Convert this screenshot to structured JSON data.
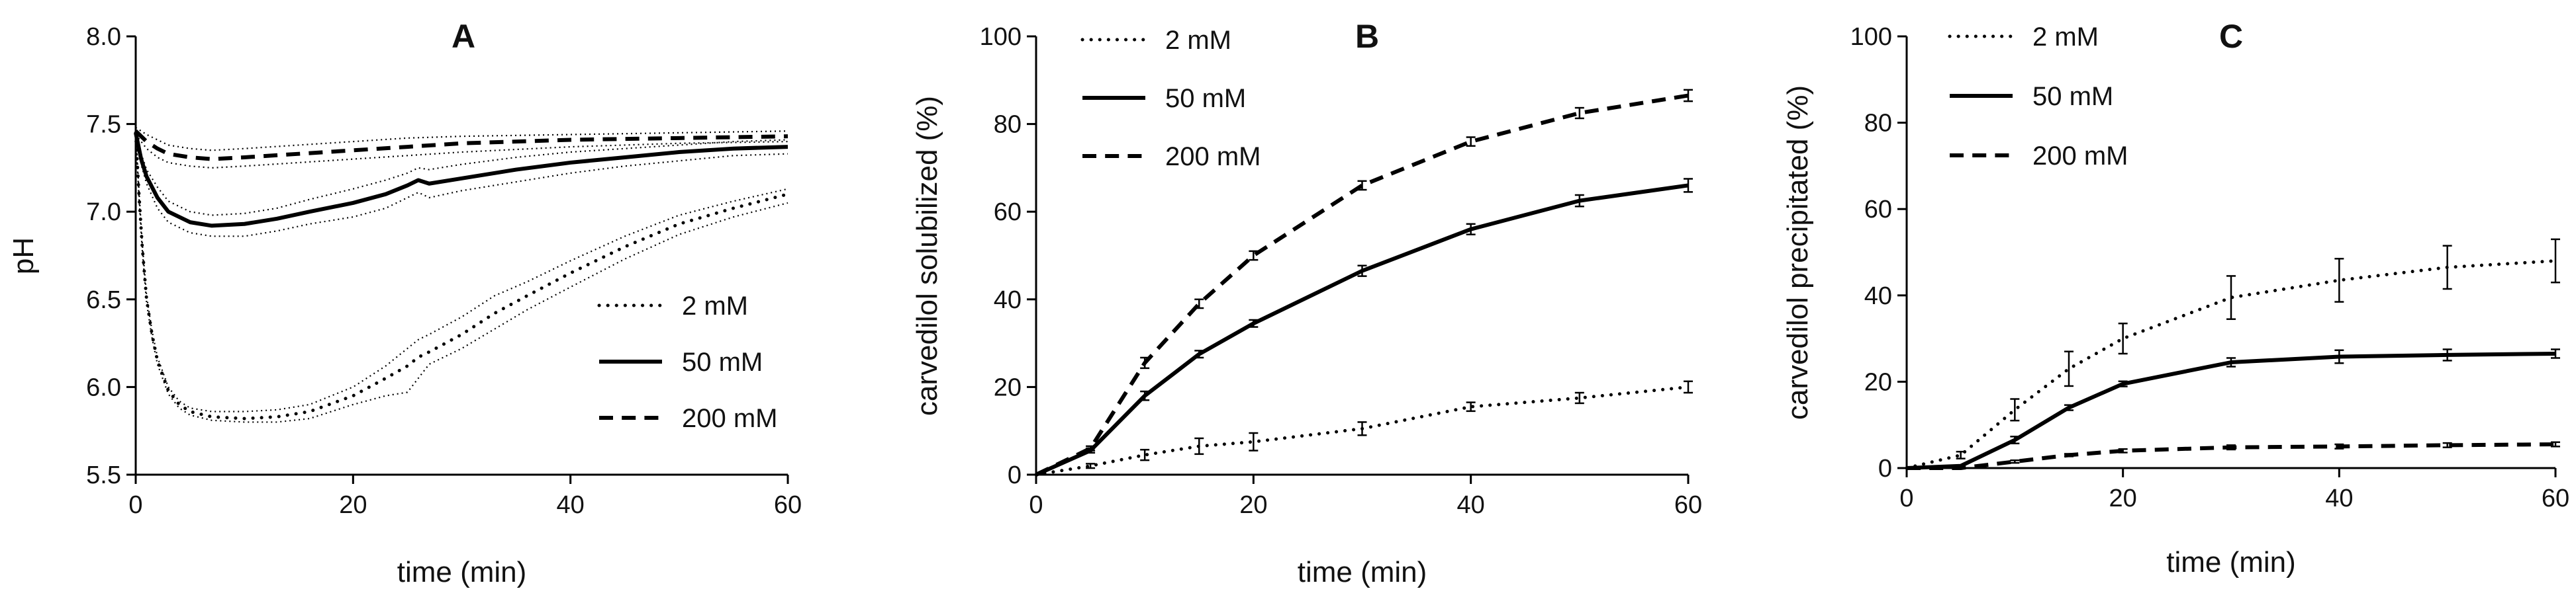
{
  "figure_title": "",
  "chart_data": [
    {
      "panel": "A",
      "type": "line",
      "title": "A",
      "xlabel": "time (min)",
      "ylabel": "pH",
      "xlim": [
        0,
        60
      ],
      "ylim": [
        5.5,
        8.0
      ],
      "xticks": [
        0,
        20,
        40,
        60
      ],
      "xtick_labels": [
        "0",
        "20",
        "40",
        "60"
      ],
      "yticks": [
        5.5,
        6.0,
        6.5,
        7.0,
        7.5,
        8.0
      ],
      "ytick_labels": [
        "5.5",
        "6.0",
        "6.5",
        "7.0",
        "7.5",
        "8.0"
      ],
      "legend_position": "bottom-right",
      "band_style": "dotted",
      "series": [
        {
          "name": "2 mM",
          "style": "dotted",
          "width": 5,
          "x": [
            0,
            0.3,
            0.6,
            1,
            1.5,
            2,
            3,
            4,
            5,
            7,
            10,
            13,
            16,
            20,
            23,
            25,
            26,
            27,
            30,
            33,
            36,
            40,
            45,
            50,
            55,
            60
          ],
          "y": [
            7.45,
            7.1,
            6.8,
            6.5,
            6.3,
            6.15,
            5.98,
            5.9,
            5.86,
            5.83,
            5.82,
            5.83,
            5.86,
            5.95,
            6.05,
            6.12,
            6.17,
            6.2,
            6.3,
            6.42,
            6.52,
            6.65,
            6.8,
            6.93,
            7.02,
            7.1
          ],
          "upper": [
            7.46,
            7.12,
            6.82,
            6.52,
            6.32,
            6.17,
            6.0,
            5.92,
            5.88,
            5.86,
            5.86,
            5.87,
            5.9,
            6.0,
            6.12,
            6.22,
            6.27,
            6.3,
            6.4,
            6.52,
            6.6,
            6.72,
            6.86,
            6.98,
            7.06,
            7.13
          ],
          "lower": [
            7.44,
            7.08,
            6.78,
            6.48,
            6.28,
            6.13,
            5.96,
            5.88,
            5.84,
            5.81,
            5.8,
            5.8,
            5.82,
            5.9,
            5.95,
            5.97,
            6.05,
            6.13,
            6.22,
            6.33,
            6.44,
            6.57,
            6.73,
            6.87,
            6.97,
            7.05
          ]
        },
        {
          "name": "50 mM",
          "style": "solid",
          "width": 6,
          "x": [
            0,
            0.5,
            1,
            2,
            3,
            5,
            7,
            10,
            13,
            16,
            20,
            23,
            25,
            26,
            27,
            30,
            35,
            40,
            45,
            50,
            55,
            60
          ],
          "y": [
            7.45,
            7.3,
            7.2,
            7.08,
            7.0,
            6.94,
            6.92,
            6.93,
            6.96,
            7.0,
            7.05,
            7.1,
            7.15,
            7.18,
            7.16,
            7.19,
            7.24,
            7.28,
            7.31,
            7.34,
            7.36,
            7.37
          ],
          "upper": [
            7.46,
            7.33,
            7.24,
            7.14,
            7.06,
            7.0,
            6.98,
            6.99,
            7.02,
            7.07,
            7.13,
            7.18,
            7.22,
            7.25,
            7.24,
            7.27,
            7.31,
            7.34,
            7.36,
            7.38,
            7.4,
            7.41
          ],
          "lower": [
            7.44,
            7.27,
            7.16,
            7.02,
            6.94,
            6.88,
            6.86,
            6.86,
            6.89,
            6.93,
            6.97,
            7.02,
            7.08,
            7.11,
            7.08,
            7.12,
            7.17,
            7.22,
            7.26,
            7.29,
            7.32,
            7.33
          ]
        },
        {
          "name": "200 mM",
          "style": "dashed",
          "width": 6,
          "x": [
            0,
            0.5,
            1,
            2,
            3,
            5,
            7,
            10,
            15,
            20,
            25,
            30,
            40,
            50,
            60
          ],
          "y": [
            7.46,
            7.43,
            7.4,
            7.36,
            7.33,
            7.31,
            7.3,
            7.31,
            7.33,
            7.35,
            7.37,
            7.39,
            7.41,
            7.42,
            7.43
          ],
          "upper": [
            7.48,
            7.46,
            7.44,
            7.41,
            7.38,
            7.36,
            7.35,
            7.36,
            7.38,
            7.4,
            7.42,
            7.43,
            7.44,
            7.45,
            7.46
          ],
          "lower": [
            7.44,
            7.4,
            7.36,
            7.31,
            7.28,
            7.26,
            7.25,
            7.26,
            7.28,
            7.3,
            7.32,
            7.34,
            7.37,
            7.39,
            7.4
          ]
        }
      ]
    },
    {
      "panel": "B",
      "type": "line",
      "title": "B",
      "xlabel": "time (min)",
      "ylabel": "carvedilol solubilized (%)",
      "xlim": [
        0,
        60
      ],
      "ylim": [
        0,
        100
      ],
      "xticks": [
        0,
        20,
        40,
        60
      ],
      "xtick_labels": [
        "0",
        "20",
        "40",
        "60"
      ],
      "yticks": [
        0,
        20,
        40,
        60,
        80,
        100
      ],
      "ytick_labels": [
        "0",
        "20",
        "40",
        "60",
        "80",
        "100"
      ],
      "legend_position": "top-left",
      "series": [
        {
          "name": "2 mM",
          "style": "dotted",
          "width": 5,
          "x": [
            0,
            5,
            10,
            15,
            20,
            30,
            40,
            50,
            60
          ],
          "y": [
            0,
            2,
            4.5,
            6.5,
            7.5,
            10.5,
            15.5,
            17.5,
            20
          ],
          "err": [
            0,
            0.5,
            1.2,
            1.8,
            2,
            1.5,
            1,
            1.2,
            1.3
          ]
        },
        {
          "name": "50 mM",
          "style": "solid",
          "width": 6,
          "x": [
            0,
            5,
            10,
            15,
            20,
            30,
            40,
            50,
            60
          ],
          "y": [
            0,
            5.5,
            18,
            27.5,
            34.5,
            46.5,
            56,
            62.5,
            66
          ],
          "err": [
            0,
            0.5,
            1,
            0.8,
            0.8,
            1.2,
            1.2,
            1.3,
            1.5
          ]
        },
        {
          "name": "200 mM",
          "style": "dashed",
          "width": 6,
          "x": [
            0,
            5,
            10,
            15,
            20,
            30,
            40,
            50,
            60
          ],
          "y": [
            0,
            6,
            25.5,
            39,
            50,
            66,
            76,
            82.5,
            86.5
          ],
          "err": [
            0,
            0.5,
            1.2,
            1,
            1,
            1,
            1,
            1.2,
            1.3
          ]
        }
      ]
    },
    {
      "panel": "C",
      "type": "line",
      "title": "C",
      "xlabel": "time (min)",
      "ylabel": "carvedilol precipitated (%)",
      "xlim": [
        0,
        60
      ],
      "ylim": [
        0,
        100
      ],
      "xticks": [
        0,
        20,
        40,
        60
      ],
      "xtick_labels": [
        "0",
        "20",
        "40",
        "60"
      ],
      "yticks": [
        0,
        20,
        40,
        60,
        80,
        100
      ],
      "ytick_labels": [
        "0",
        "20",
        "40",
        "60",
        "80",
        "100"
      ],
      "legend_position": "top-left",
      "series": [
        {
          "name": "2 mM",
          "style": "dotted",
          "width": 5,
          "x": [
            0,
            5,
            10,
            15,
            20,
            30,
            40,
            50,
            60
          ],
          "y": [
            0,
            3,
            13.5,
            23,
            30,
            39.5,
            43.5,
            46.5,
            48
          ],
          "err": [
            0,
            0.8,
            2.5,
            4,
            3.5,
            5,
            5,
            5,
            5
          ]
        },
        {
          "name": "50 mM",
          "style": "solid",
          "width": 6,
          "x": [
            0,
            5,
            10,
            15,
            20,
            30,
            40,
            50,
            60
          ],
          "y": [
            0,
            0.5,
            6.5,
            14,
            19.5,
            24.5,
            25.8,
            26.2,
            26.5
          ],
          "err": [
            0,
            0.2,
            0.8,
            0.6,
            0.6,
            1,
            1.5,
            1.3,
            1
          ]
        },
        {
          "name": "200 mM",
          "style": "dashed",
          "width": 6,
          "x": [
            0,
            5,
            10,
            15,
            20,
            30,
            40,
            50,
            60
          ],
          "y": [
            0,
            0,
            1.5,
            3,
            4,
            4.8,
            5,
            5.3,
            5.5
          ],
          "err": [
            0,
            0,
            0.3,
            0.3,
            0.4,
            0.5,
            0.5,
            0.5,
            0.5
          ]
        }
      ]
    }
  ]
}
